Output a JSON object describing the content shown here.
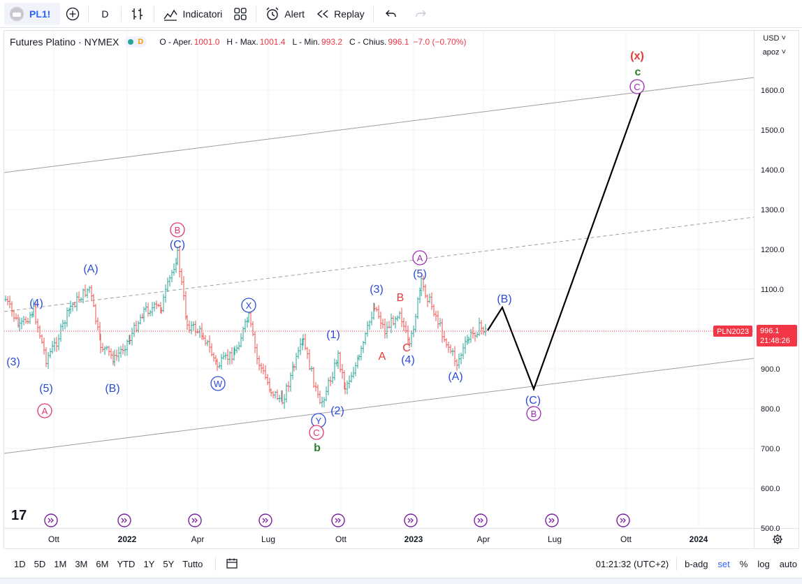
{
  "toolbar": {
    "symbol": "PL1!",
    "interval": "D",
    "indicators": "Indicatori",
    "alert": "Alert",
    "replay": "Replay"
  },
  "legend": {
    "title": "Futures Platino · NYMEX",
    "status_letter": "D",
    "open_label": "O - Aper.",
    "open": "1001.0",
    "high_label": "H - Max.",
    "high": "1001.4",
    "low_label": "L - Min.",
    "low": "993.2",
    "close_label": "C - Chius.",
    "close": "996.1",
    "change": "−7.0 (−0.70%)"
  },
  "price_axis": {
    "currency": "USD",
    "scale_mode": "apoz",
    "ticks": [
      "1600.0",
      "1500.0",
      "1400.0",
      "1300.0",
      "1200.0",
      "1100.0",
      "1000.0",
      "900.0",
      "800.0",
      "700.0",
      "600.0",
      "500.0"
    ],
    "symbol_tag": "PLN2023",
    "last_price": "996.1",
    "countdown": "21:48:26"
  },
  "time_axis": {
    "labels": [
      "Ott",
      "2022",
      "Apr",
      "Lug",
      "Ott",
      "2023",
      "Apr",
      "Lug",
      "Ott",
      "2024"
    ]
  },
  "wave_labels": [
    {
      "text": "(4)",
      "color": "#2a4bd7"
    },
    {
      "text": "(3)",
      "color": "#2a4bd7"
    },
    {
      "text": "(5)",
      "color": "#2a4bd7"
    },
    {
      "text": "A",
      "color": "#e0356a",
      "circled": true
    },
    {
      "text": "(A)",
      "color": "#2a4bd7"
    },
    {
      "text": "(B)",
      "color": "#2a4bd7"
    },
    {
      "text": "B",
      "color": "#e0356a",
      "circled": true
    },
    {
      "text": "(C)",
      "color": "#2a4bd7"
    },
    {
      "text": "X",
      "color": "#2a4bd7",
      "circled": true
    },
    {
      "text": "W",
      "color": "#2a4bd7",
      "circled": true
    },
    {
      "text": "(1)",
      "color": "#2a4bd7"
    },
    {
      "text": "(2)",
      "color": "#2a4bd7"
    },
    {
      "text": "Y",
      "color": "#2a4bd7",
      "circled": true
    },
    {
      "text": "C",
      "color": "#e0356a",
      "circled": true
    },
    {
      "text": "b",
      "color": "#2e7d32"
    },
    {
      "text": "(3)",
      "color": "#2a4bd7"
    },
    {
      "text": "A",
      "color": "#e53935"
    },
    {
      "text": "B",
      "color": "#e53935"
    },
    {
      "text": "C",
      "color": "#e53935"
    },
    {
      "text": "(4)",
      "color": "#2a4bd7"
    },
    {
      "text": "A",
      "color": "#9c27b0",
      "circled": true
    },
    {
      "text": "(5)",
      "color": "#2a4bd7"
    },
    {
      "text": "(A)",
      "color": "#2a4bd7"
    },
    {
      "text": "(B)",
      "color": "#2a4bd7"
    },
    {
      "text": "(C)",
      "color": "#2a4bd7"
    },
    {
      "text": "B",
      "color": "#9c27b0",
      "circled": true
    },
    {
      "text": "(x)",
      "color": "#e53935"
    },
    {
      "text": "c",
      "color": "#2e7d32"
    },
    {
      "text": "C",
      "color": "#9c27b0",
      "circled": true
    }
  ],
  "colors": {
    "up": "#26a69a",
    "down": "#ef5350",
    "projection": "#000000",
    "channel": "#9e9e9e",
    "last_price": "#f23645",
    "accent": "#2962ff"
  },
  "bottom": {
    "ranges": [
      "1D",
      "5D",
      "1M",
      "3M",
      "6M",
      "YTD",
      "1Y",
      "5Y",
      "Tutto"
    ],
    "clock": "01:21:32 (UTC+2)",
    "adj": "b-adg",
    "set": "set",
    "percent": "%",
    "log": "log",
    "auto": "auto"
  }
}
